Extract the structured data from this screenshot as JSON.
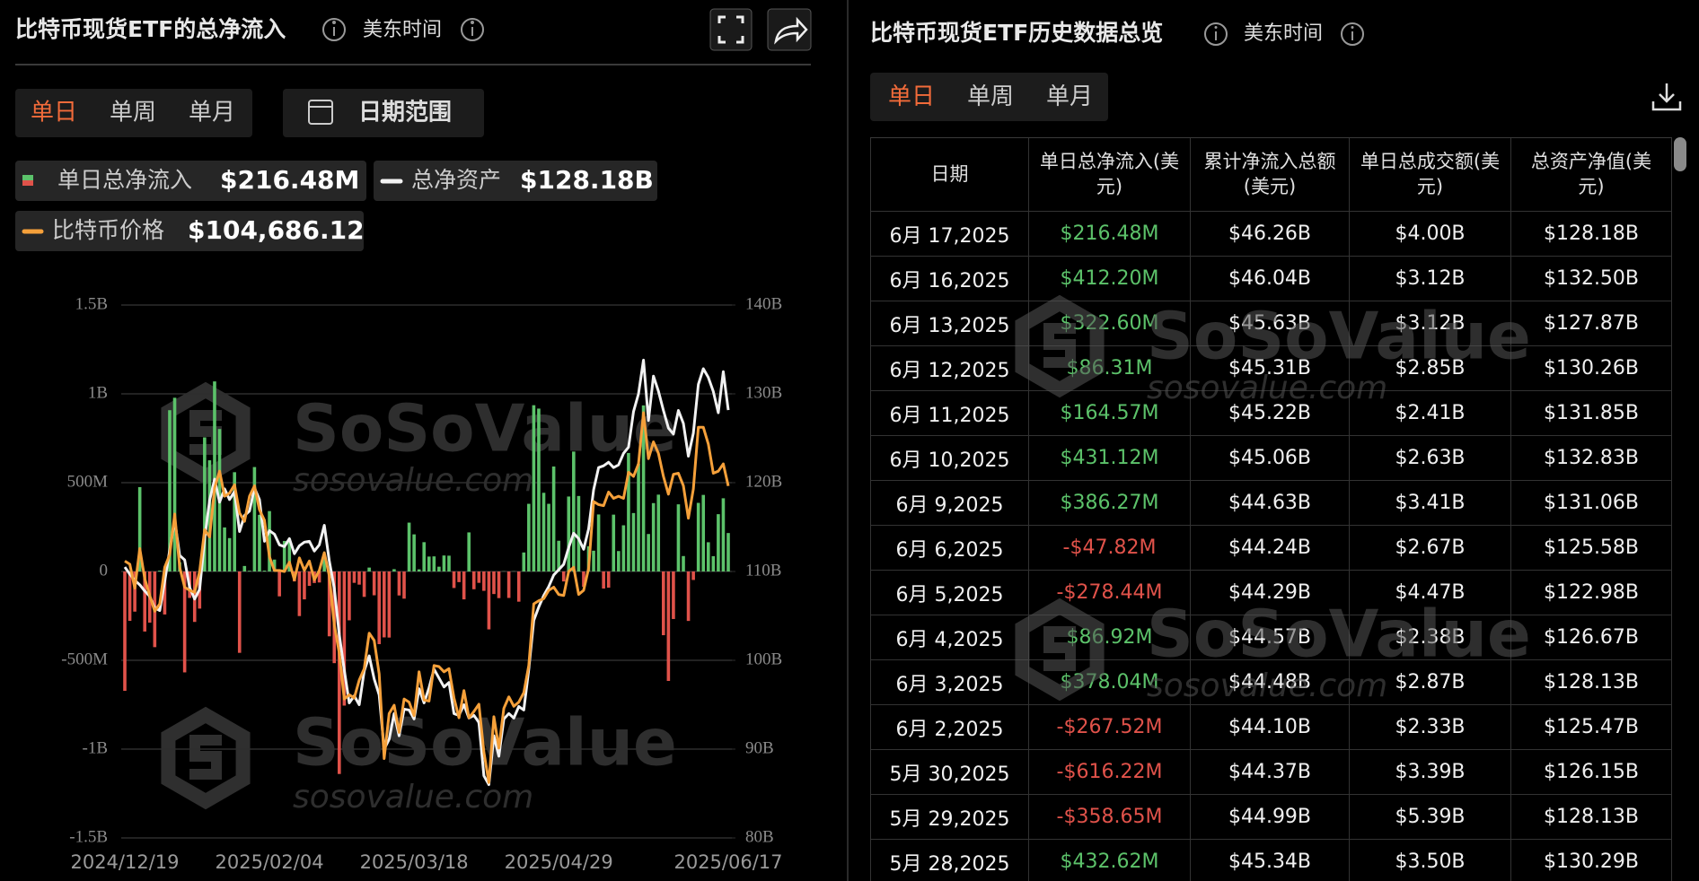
{
  "chart_data": {
    "type": "bar",
    "title": "比特币现货ETF的总净流入",
    "categories": [
      "2024/12/19",
      null,
      null,
      null,
      null,
      null,
      null,
      null,
      null,
      null,
      null,
      null,
      null,
      null,
      null,
      null,
      null,
      null,
      null,
      null,
      null,
      null,
      null,
      null,
      null,
      null,
      null,
      null,
      null,
      "2025/02/04",
      null,
      null,
      null,
      null,
      null,
      null,
      null,
      null,
      null,
      null,
      null,
      null,
      null,
      null,
      null,
      null,
      null,
      null,
      null,
      null,
      null,
      null,
      null,
      null,
      null,
      null,
      null,
      null,
      "2025/03/18",
      null,
      null,
      null,
      null,
      null,
      null,
      null,
      null,
      null,
      null,
      null,
      null,
      null,
      null,
      null,
      null,
      null,
      null,
      null,
      null,
      null,
      null,
      null,
      null,
      null,
      null,
      null,
      null,
      "2025/04/29",
      null,
      null,
      null,
      null,
      null,
      null,
      null,
      null,
      null,
      null,
      null,
      null,
      null,
      null,
      null,
      null,
      null,
      null,
      null,
      null,
      null,
      null,
      null,
      null,
      null,
      null,
      null,
      null,
      null,
      null,
      null,
      null,
      null,
      "2025/06/17"
    ],
    "series": [
      {
        "name": "单日总净流入",
        "type": "bar",
        "color": "#5cc26a",
        "negative_color": "#e0524a",
        "legend_value": "$216.48M",
        "values": [
          -672,
          -278,
          -226,
          475,
          -338,
          -288,
          -426,
          5,
          -242,
          908,
          978,
          52,
          -568,
          -149,
          -284,
          -209,
          755,
          626,
          1070,
          802,
          248,
          188,
          559,
          -458,
          31,
          4,
          588,
          319,
          5,
          340,
          67,
          -140,
          172,
          186,
          -56,
          -251,
          -157,
          -81,
          -65,
          -62,
          94,
          -365,
          -516,
          -1140,
          -755,
          -275,
          -64,
          -74,
          -143,
          22,
          -134,
          -409,
          -371,
          -372,
          13,
          -135,
          -153,
          275,
          209,
          12,
          165,
          84,
          85,
          27,
          90,
          89,
          -93,
          -60,
          -157,
          220,
          -100,
          -64,
          -109,
          -326,
          -127,
          -150,
          1,
          -149,
          1,
          -170,
          107,
          381,
          936,
          917,
          443,
          381,
          591,
          173,
          -56,
          422,
          675,
          425,
          -86,
          142,
          117,
          321,
          -96,
          -91,
          320,
          115,
          260,
          667,
          329,
          607,
          935,
          211,
          385,
          432.62,
          -358.65,
          -616.22,
          -267.52,
          378.04,
          86.92,
          -278.44,
          -47.82,
          386.27,
          431.12,
          164.57,
          86.31,
          322.6,
          412.2,
          216.48
        ]
      },
      {
        "name": "总净资产",
        "type": "line",
        "axis": "y2",
        "color": "#f2f2f2",
        "legend_value": "$128.18B",
        "values": [
          110.5,
          109.7,
          109.0,
          108.5,
          107.8,
          107.2,
          105.9,
          105.6,
          108.9,
          112.4,
          115.8,
          111.8,
          111.3,
          108.2,
          106.9,
          108.0,
          113.7,
          118.0,
          120.4,
          117.8,
          119.3,
          118.1,
          119.0,
          114.5,
          116.3,
          116.8,
          119.4,
          118.1,
          113.4,
          114.6,
          114.2,
          113.0,
          112.8,
          113.7,
          112.0,
          112.9,
          113.3,
          113.4,
          112.3,
          113.0,
          115.2,
          111.2,
          108.1,
          102.9,
          98.9,
          95.2,
          96.0,
          95.0,
          98.8,
          100.5,
          97.9,
          96.1,
          90.0,
          91.1,
          94.0,
          91.5,
          94.5,
          94.4,
          93.4,
          96.8,
          95.2,
          96.9,
          99.0,
          98.0,
          97.0,
          97.5,
          94.0,
          93.8,
          95.0,
          93.5,
          93.8,
          93.0,
          87.0,
          86.0,
          91.5,
          89.2,
          93.4,
          94.0,
          93.5,
          94.8,
          94.4,
          99.0,
          104.5,
          106.0,
          107.3,
          108.3,
          109.6,
          110.2,
          110.8,
          112.7,
          114.3,
          113.7,
          112.5,
          114.8,
          119.2,
          121.7,
          121.9,
          122.3,
          121.7,
          122.0,
          123.3,
          124.0,
          128.0,
          130.0,
          133.8,
          127.0,
          132.0,
          130.29,
          128.13,
          126.15,
          125.47,
          128.13,
          126.67,
          122.98,
          125.58,
          131.06,
          132.83,
          131.85,
          130.26,
          127.87,
          132.5,
          128.18
        ]
      },
      {
        "name": "比特币价格",
        "type": "line",
        "axis": "y3",
        "color": "#f5a03a",
        "legend_value": "$104,686.12",
        "values": [
          97500,
          97200,
          94900,
          98700,
          95800,
          94200,
          92700,
          93400,
          96900,
          98100,
          102000,
          96900,
          95000,
          94700,
          94500,
          96500,
          100500,
          99800,
          104500,
          106100,
          103700,
          104000,
          104800,
          102100,
          101300,
          103700,
          104700,
          102400,
          101400,
          97900,
          96600,
          96600,
          96500,
          97400,
          95700,
          97800,
          96600,
          97500,
          95700,
          96600,
          98300,
          96100,
          91400,
          88700,
          84300,
          84700,
          84400,
          86100,
          87200,
          90600,
          89900,
          86700,
          78600,
          82900,
          83700,
          81100,
          84300,
          84000,
          82700,
          86900,
          84200,
          84100,
          87500,
          87400,
          86900,
          87200,
          84400,
          82500,
          85100,
          82500,
          83100,
          83800,
          79200,
          76300,
          82600,
          79600,
          83400,
          84500,
          83600,
          84000,
          84900,
          87500,
          93400,
          93700,
          93900,
          94700,
          95000,
          94300,
          94200,
          96500,
          96900,
          94300,
          94700,
          96800,
          103200,
          102900,
          102800,
          104100,
          103500,
          103700,
          103500,
          106000,
          105600,
          106800,
          111700,
          107300,
          108900,
          107800,
          105600,
          103900,
          105800,
          105900,
          104700,
          101600,
          104400,
          110300,
          110300,
          108700,
          105900,
          106100,
          106800,
          104686.12
        ]
      }
    ],
    "ylim": [
      -1500,
      1500
    ],
    "yticks": [
      {
        "value": -1500,
        "label": "-1.5B"
      },
      {
        "value": -1000,
        "label": "-1B"
      },
      {
        "value": -500,
        "label": "-500M"
      },
      0,
      {
        "value": 500,
        "label": "500M"
      },
      {
        "value": 1000,
        "label": "1B"
      },
      {
        "value": 1500,
        "label": "1.5B"
      }
    ],
    "y2lim": [
      80,
      140
    ],
    "y2ticks": [
      {
        "value": 80,
        "label": "80B"
      },
      {
        "value": 90,
        "label": "90B"
      },
      {
        "value": 100,
        "label": "100B"
      },
      {
        "value": 110,
        "label": "110B"
      },
      {
        "value": 120,
        "label": "120B"
      },
      {
        "value": 130,
        "label": "130B"
      },
      {
        "value": 140,
        "label": "140B"
      }
    ],
    "y3lim": [
      71000,
      122000
    ],
    "grid": true
  },
  "left_panel": {
    "timezone": "美东时间",
    "tabs": [
      "单日",
      "单周",
      "单月"
    ],
    "date_range": "日期范围"
  },
  "right_panel": {
    "title": "比特币现货ETF历史数据总览",
    "timezone": "美东时间",
    "tabs": [
      "单日",
      "单周",
      "单月"
    ]
  },
  "table": {
    "headers": [
      "日期",
      "单日总净流入(美元)",
      "累计净流入总额(美元)",
      "单日总成交额(美元)",
      "总资产净值(美元)"
    ],
    "rows": [
      [
        "6月 17,2025",
        "$216.48M",
        "$46.26B",
        "$4.00B",
        "$128.18B"
      ],
      [
        "6月 16,2025",
        "$412.20M",
        "$46.04B",
        "$3.12B",
        "$132.50B"
      ],
      [
        "6月 13,2025",
        "$322.60M",
        "$45.63B",
        "$3.12B",
        "$127.87B"
      ],
      [
        "6月 12,2025",
        "$86.31M",
        "$45.31B",
        "$2.85B",
        "$130.26B"
      ],
      [
        "6月 11,2025",
        "$164.57M",
        "$45.22B",
        "$2.41B",
        "$131.85B"
      ],
      [
        "6月 10,2025",
        "$431.12M",
        "$45.06B",
        "$2.63B",
        "$132.83B"
      ],
      [
        "6月 9,2025",
        "$386.27M",
        "$44.63B",
        "$3.41B",
        "$131.06B"
      ],
      [
        "6月 6,2025",
        "-$47.82M",
        "$44.24B",
        "$2.67B",
        "$125.58B"
      ],
      [
        "6月 5,2025",
        "-$278.44M",
        "$44.29B",
        "$4.47B",
        "$122.98B"
      ],
      [
        "6月 4,2025",
        "$86.92M",
        "$44.57B",
        "$2.38B",
        "$126.67B"
      ],
      [
        "6月 3,2025",
        "$378.04M",
        "$44.48B",
        "$2.87B",
        "$128.13B"
      ],
      [
        "6月 2,2025",
        "-$267.52M",
        "$44.10B",
        "$2.33B",
        "$125.47B"
      ],
      [
        "5月 30,2025",
        "-$616.22M",
        "$44.37B",
        "$3.39B",
        "$126.15B"
      ],
      [
        "5月 29,2025",
        "-$358.65M",
        "$44.99B",
        "$5.39B",
        "$128.13B"
      ],
      [
        "5月 28,2025",
        "$432.62M",
        "$45.34B",
        "$3.50B",
        "$130.29B"
      ]
    ]
  },
  "watermark": {
    "brand": "SoSoValue",
    "url": "sosovalue.com"
  }
}
